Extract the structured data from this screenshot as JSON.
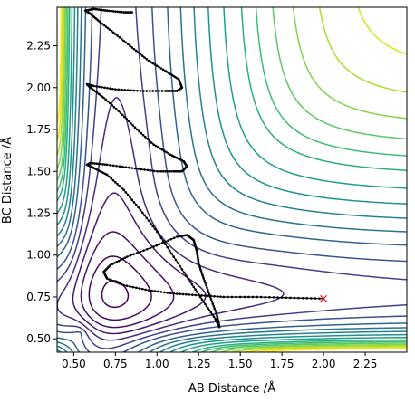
{
  "chart_data": {
    "type": "contour",
    "xlabel": "AB Distance /Å",
    "ylabel": "BC Distance /Å",
    "xlim": [
      0.4,
      2.5
    ],
    "ylim": [
      0.42,
      2.48
    ],
    "xticks": [
      "0.50",
      "0.75",
      "1.00",
      "1.25",
      "1.50",
      "1.75",
      "2.00",
      "2.25"
    ],
    "yticks": [
      "0.50",
      "0.75",
      "1.00",
      "1.25",
      "1.50",
      "1.75",
      "2.00",
      "2.25"
    ],
    "xtick_values": [
      0.5,
      0.75,
      1.0,
      1.25,
      1.5,
      1.75,
      2.0,
      2.25
    ],
    "ytick_values": [
      0.5,
      0.75,
      1.0,
      1.25,
      1.5,
      1.75,
      2.0,
      2.25
    ],
    "grid": false,
    "colormap": "viridis",
    "contours": [
      {
        "level": 0.0,
        "color": "#440154"
      },
      {
        "level": 0.07,
        "color": "#46085c"
      },
      {
        "level": 0.14,
        "color": "#471063"
      },
      {
        "level": 0.21,
        "color": "#48186a"
      },
      {
        "level": 0.28,
        "color": "#472d7b"
      },
      {
        "level": 0.35,
        "color": "#424086"
      },
      {
        "level": 0.42,
        "color": "#3b528b"
      },
      {
        "level": 0.5,
        "color": "#33638d"
      },
      {
        "level": 0.57,
        "color": "#2c728e"
      },
      {
        "level": 0.64,
        "color": "#26828e"
      },
      {
        "level": 0.71,
        "color": "#21918c"
      },
      {
        "level": 0.78,
        "color": "#1fa088"
      },
      {
        "level": 0.85,
        "color": "#28ae80"
      },
      {
        "level": 0.9,
        "color": "#3fbc73"
      },
      {
        "level": 0.95,
        "color": "#5ec962"
      },
      {
        "level": 1.0,
        "color": "#84d44b"
      },
      {
        "level": 1.05,
        "color": "#addc30"
      },
      {
        "level": 1.1,
        "color": "#d8e219"
      },
      {
        "level": 1.15,
        "color": "#fde725"
      }
    ],
    "trajectory": {
      "color": "#000000",
      "points": [
        [
          2.0,
          0.74
        ],
        [
          1.8,
          0.745
        ],
        [
          1.6,
          0.75
        ],
        [
          1.4,
          0.75
        ],
        [
          1.25,
          0.76
        ],
        [
          1.1,
          0.77
        ],
        [
          0.95,
          0.79
        ],
        [
          0.8,
          0.82
        ],
        [
          0.7,
          0.86
        ],
        [
          0.68,
          0.9
        ],
        [
          0.72,
          0.94
        ],
        [
          0.82,
          0.99
        ],
        [
          0.98,
          1.05
        ],
        [
          1.12,
          1.11
        ],
        [
          1.18,
          1.12
        ],
        [
          1.22,
          1.09
        ],
        [
          1.24,
          1.02
        ],
        [
          1.25,
          0.95
        ],
        [
          1.28,
          0.86
        ],
        [
          1.32,
          0.75
        ],
        [
          1.36,
          0.64
        ],
        [
          1.375,
          0.57
        ],
        [
          1.35,
          0.62
        ],
        [
          1.28,
          0.72
        ],
        [
          1.2,
          0.84
        ],
        [
          1.1,
          0.99
        ],
        [
          1.0,
          1.14
        ],
        [
          0.9,
          1.27
        ],
        [
          0.8,
          1.39
        ],
        [
          0.7,
          1.48
        ],
        [
          0.62,
          1.52
        ],
        [
          0.58,
          1.54
        ],
        [
          0.6,
          1.55
        ],
        [
          0.7,
          1.54
        ],
        [
          0.85,
          1.52
        ],
        [
          1.0,
          1.5
        ],
        [
          1.1,
          1.5
        ],
        [
          1.15,
          1.5
        ],
        [
          1.18,
          1.53
        ],
        [
          1.16,
          1.56
        ],
        [
          1.08,
          1.6
        ],
        [
          0.98,
          1.66
        ],
        [
          0.88,
          1.75
        ],
        [
          0.78,
          1.85
        ],
        [
          0.68,
          1.94
        ],
        [
          0.6,
          2.0
        ],
        [
          0.58,
          2.02
        ],
        [
          0.62,
          2.01
        ],
        [
          0.75,
          1.99
        ],
        [
          0.9,
          1.98
        ],
        [
          1.05,
          1.98
        ],
        [
          1.12,
          1.98
        ],
        [
          1.15,
          2.0
        ],
        [
          1.13,
          2.05
        ],
        [
          1.05,
          2.1
        ],
        [
          0.95,
          2.16
        ],
        [
          0.85,
          2.24
        ],
        [
          0.75,
          2.32
        ],
        [
          0.66,
          2.39
        ],
        [
          0.6,
          2.44
        ],
        [
          0.57,
          2.46
        ],
        [
          0.62,
          2.47
        ],
        [
          0.7,
          2.46
        ],
        [
          0.8,
          2.45
        ],
        [
          0.85,
          2.45
        ]
      ]
    },
    "marker": {
      "x": 2.0,
      "y": 0.74,
      "symbol": "x",
      "color": "#e8261e"
    }
  }
}
